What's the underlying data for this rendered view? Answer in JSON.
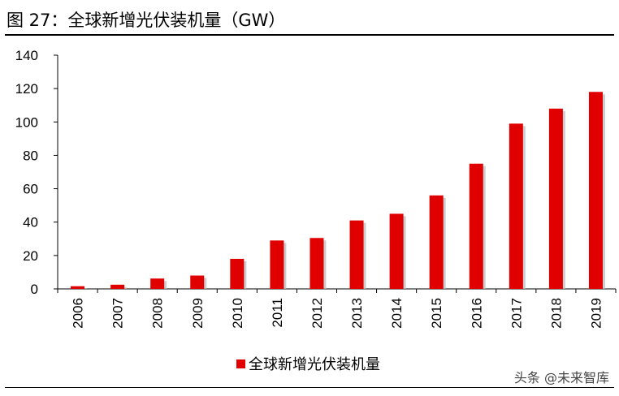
{
  "figure_title": "图 27：全球新增光伏装机量（GW）",
  "watermark": "头条 @未来智库",
  "chart_data": {
    "type": "bar",
    "title": "",
    "xlabel": "",
    "ylabel": "",
    "ylim": [
      0,
      140
    ],
    "yticks": [
      0,
      20,
      40,
      60,
      80,
      100,
      120,
      140
    ],
    "categories": [
      "2006",
      "2007",
      "2008",
      "2009",
      "2010",
      "2011",
      "2012",
      "2013",
      "2014",
      "2015",
      "2016",
      "2017",
      "2018",
      "2019"
    ],
    "series": [
      {
        "name": "全球新增光伏装机量",
        "color": "#e00000",
        "values": [
          1.6,
          2.5,
          6.2,
          8.0,
          18.0,
          29.0,
          30.5,
          41.0,
          45.0,
          56.0,
          75.0,
          99.0,
          108.0,
          118.0
        ]
      }
    ],
    "grid": false,
    "legend": "bottom-center"
  }
}
